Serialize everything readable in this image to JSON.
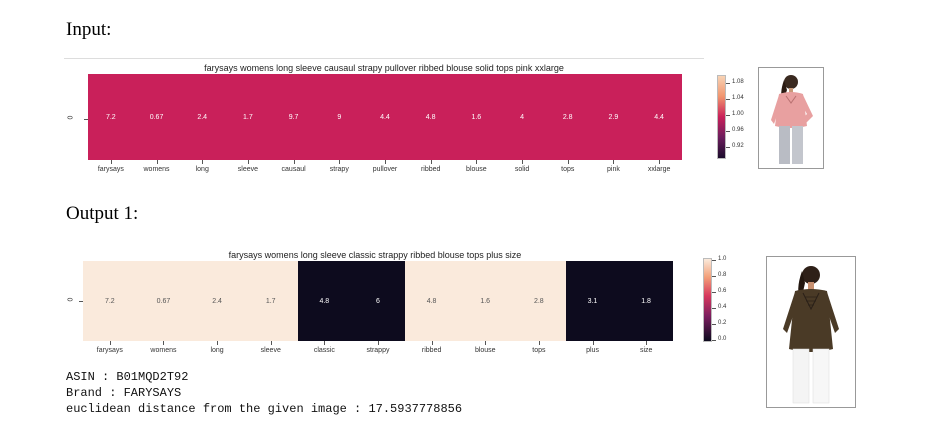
{
  "labels": {
    "input": "Input:",
    "output1": "Output 1:"
  },
  "chart_data": [
    {
      "type": "heatmap",
      "title": "farysays womens long sleeve causaul strapy pullover ribbed blouse solid tops pink xxlarge",
      "row_labels": [
        "0"
      ],
      "categories": [
        "farysays",
        "womens",
        "long",
        "sleeve",
        "causaul",
        "strapy",
        "pullover",
        "ribbed",
        "blouse",
        "solid",
        "tops",
        "pink",
        "xxlarge"
      ],
      "values": [
        7.2,
        0.67,
        2.4,
        1.7,
        9.7,
        9,
        4.4,
        4.8,
        1.6,
        4,
        2.8,
        2.9,
        4.4
      ],
      "value_labels": [
        "7.2",
        "0.67",
        "2.4",
        "1.7",
        "9.7",
        "9",
        "4.4",
        "4.8",
        "1.6",
        "4",
        "2.8",
        "2.9",
        "4.4"
      ],
      "cell_intensity": [
        1,
        1,
        1,
        1,
        1,
        1,
        1,
        1,
        1,
        1,
        1,
        1,
        1
      ],
      "colorbar": {
        "ticks": [
          "1.08",
          "1.04",
          "1.00",
          "0.96",
          "0.92"
        ],
        "range": [
          0.9,
          1.1
        ]
      },
      "colors": {
        "cell": "#c9205a",
        "value_text": "#ffffff"
      }
    },
    {
      "type": "heatmap",
      "title": "farysays womens long sleeve classic strappy ribbed blouse tops plus size",
      "row_labels": [
        "0"
      ],
      "categories": [
        "farysays",
        "womens",
        "long",
        "sleeve",
        "classic",
        "strappy",
        "ribbed",
        "blouse",
        "tops",
        "plus",
        "size"
      ],
      "values": [
        7.2,
        0.67,
        2.4,
        1.7,
        4.8,
        6,
        4.8,
        1.6,
        2.8,
        3.1,
        1.8
      ],
      "value_labels": [
        "7.2",
        "0.67",
        "2.4",
        "1.7",
        "4.8",
        "6",
        "4.8",
        "1.6",
        "2.8",
        "3.1",
        "1.8"
      ],
      "cell_intensity": [
        1,
        1,
        1,
        1,
        0,
        0,
        1,
        1,
        1,
        0,
        0
      ],
      "colorbar": {
        "ticks": [
          "1.0",
          "0.8",
          "0.6",
          "0.4",
          "0.2",
          "0.0"
        ],
        "range": [
          0.0,
          1.0
        ]
      },
      "colors": {
        "high": "#faeadc",
        "low": "#0d0b1e",
        "text_on_high": "#555555",
        "text_on_low": "#ffffff"
      }
    }
  ],
  "images": [
    {
      "icon": "pink-blouse-photo-icon",
      "color": "#e8a0a0"
    },
    {
      "icon": "brown-blouse-photo-icon",
      "color": "#4a3a26"
    }
  ],
  "info": {
    "asin": "ASIN : B01MQD2T92",
    "brand": "Brand : FARYSAYS",
    "distance": "euclidean distance from the given image : 17.5937778856"
  }
}
